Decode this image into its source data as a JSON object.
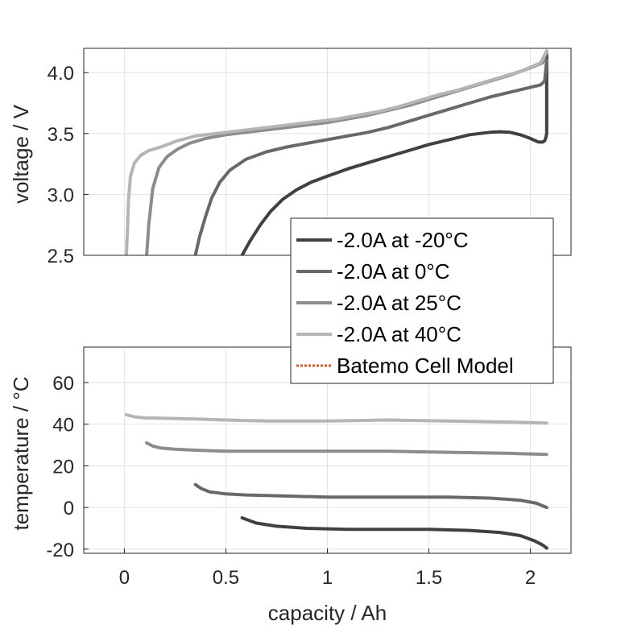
{
  "chart_data": [
    {
      "type": "line",
      "panel": "voltage",
      "title": "",
      "xlabel": "",
      "ylabel": "voltage / V",
      "xlim": [
        -0.2,
        2.2
      ],
      "ylim": [
        2.5,
        4.2
      ],
      "yticks": [
        "2.5",
        "3.0",
        "3.5",
        "4.0"
      ],
      "ytick_values": [
        2.5,
        3.0,
        3.5,
        4.0
      ],
      "xticks_values": [
        0,
        0.5,
        1,
        1.5,
        2
      ],
      "grid": true,
      "series": [
        {
          "name": "-2.0A at -20°C",
          "color": "#404040",
          "x": [
            0.58,
            0.62,
            0.67,
            0.72,
            0.78,
            0.85,
            0.92,
            1.0,
            1.1,
            1.2,
            1.3,
            1.4,
            1.5,
            1.6,
            1.7,
            1.8,
            1.85,
            1.9,
            1.95,
            2.0,
            2.04,
            2.06,
            2.07,
            2.075,
            2.08,
            2.08,
            2.08
          ],
          "y": [
            2.5,
            2.62,
            2.75,
            2.86,
            2.96,
            3.04,
            3.1,
            3.15,
            3.21,
            3.26,
            3.31,
            3.36,
            3.41,
            3.45,
            3.49,
            3.51,
            3.515,
            3.51,
            3.49,
            3.46,
            3.43,
            3.43,
            3.44,
            3.46,
            3.5,
            3.9,
            4.15
          ]
        },
        {
          "name": "-2.0A at 0°C",
          "color": "#696969",
          "x": [
            0.35,
            0.37,
            0.4,
            0.43,
            0.47,
            0.52,
            0.6,
            0.7,
            0.8,
            0.9,
            1.0,
            1.1,
            1.2,
            1.3,
            1.4,
            1.5,
            1.6,
            1.7,
            1.8,
            1.9,
            2.0,
            2.05,
            2.07,
            2.08
          ],
          "y": [
            2.5,
            2.65,
            2.82,
            2.97,
            3.1,
            3.2,
            3.29,
            3.35,
            3.39,
            3.42,
            3.45,
            3.48,
            3.51,
            3.55,
            3.6,
            3.65,
            3.7,
            3.75,
            3.8,
            3.84,
            3.88,
            3.9,
            3.93,
            4.1
          ]
        },
        {
          "name": "-2.0A at 25°C",
          "color": "#8c8c8c",
          "x": [
            0.11,
            0.12,
            0.14,
            0.17,
            0.21,
            0.26,
            0.32,
            0.4,
            0.5,
            0.6,
            0.7,
            0.8,
            0.9,
            1.0,
            1.1,
            1.2,
            1.3,
            1.4,
            1.5,
            1.6,
            1.7,
            1.8,
            1.9,
            2.0,
            2.06,
            2.08
          ],
          "y": [
            2.5,
            2.75,
            3.05,
            3.22,
            3.31,
            3.37,
            3.42,
            3.46,
            3.49,
            3.51,
            3.53,
            3.55,
            3.57,
            3.59,
            3.62,
            3.65,
            3.69,
            3.73,
            3.78,
            3.83,
            3.88,
            3.93,
            3.98,
            4.04,
            4.08,
            4.17
          ]
        },
        {
          "name": "-2.0A at 40°C",
          "color": "#b5b5b5",
          "x": [
            0.01,
            0.015,
            0.02,
            0.03,
            0.05,
            0.08,
            0.12,
            0.18,
            0.26,
            0.35,
            0.45,
            0.55,
            0.65,
            0.75,
            0.85,
            0.95,
            1.05,
            1.15,
            1.25,
            1.35,
            1.45,
            1.55,
            1.65,
            1.75,
            1.85,
            1.95,
            2.05,
            2.08
          ],
          "y": [
            2.5,
            2.7,
            2.95,
            3.15,
            3.26,
            3.32,
            3.36,
            3.39,
            3.44,
            3.48,
            3.5,
            3.52,
            3.54,
            3.56,
            3.58,
            3.6,
            3.62,
            3.65,
            3.68,
            3.72,
            3.77,
            3.82,
            3.86,
            3.91,
            3.96,
            4.01,
            4.08,
            4.18
          ]
        },
        {
          "name": "Batemo Cell Model",
          "color": "#e8541a",
          "style": "dotted",
          "x": [],
          "y": []
        }
      ],
      "legend": {
        "placement": "overlapping bottom-right",
        "entries": [
          "-2.0A at -20°C",
          "-2.0A at 0°C",
          "-2.0A at 25°C",
          "-2.0A at 40°C",
          "Batemo Cell Model"
        ]
      }
    },
    {
      "type": "line",
      "panel": "temperature",
      "title": "",
      "xlabel": "capacity / Ah",
      "ylabel": "temperature / °C",
      "xlim": [
        -0.2,
        2.2
      ],
      "ylim": [
        -22,
        77
      ],
      "yticks": [
        "-20",
        "0",
        "20",
        "40",
        "60"
      ],
      "ytick_values": [
        -20,
        0,
        20,
        40,
        60
      ],
      "xticks": [
        "0",
        "0.5",
        "1",
        "1.5",
        "2"
      ],
      "xticks_values": [
        0,
        0.5,
        1,
        1.5,
        2
      ],
      "grid": true,
      "series": [
        {
          "name": "-2.0A at -20°C",
          "color": "#404040",
          "x": [
            0.58,
            0.65,
            0.75,
            0.9,
            1.1,
            1.3,
            1.5,
            1.7,
            1.85,
            1.95,
            2.02,
            2.06,
            2.08
          ],
          "y": [
            -5,
            -7.5,
            -9,
            -10,
            -10.5,
            -10.5,
            -10.5,
            -11,
            -12,
            -13.5,
            -16,
            -18,
            -19.5
          ]
        },
        {
          "name": "-2.0A at 0°C",
          "color": "#696969",
          "x": [
            0.35,
            0.38,
            0.42,
            0.5,
            0.6,
            0.8,
            1.0,
            1.3,
            1.6,
            1.8,
            1.95,
            2.03,
            2.08
          ],
          "y": [
            11,
            9,
            7.5,
            6.5,
            6,
            5.5,
            5,
            5,
            5,
            4.5,
            3.5,
            2,
            0
          ]
        },
        {
          "name": "-2.0A at 25°C",
          "color": "#8c8c8c",
          "x": [
            0.11,
            0.14,
            0.18,
            0.25,
            0.35,
            0.5,
            0.7,
            1.0,
            1.3,
            1.6,
            1.9,
            2.08
          ],
          "y": [
            31,
            29.5,
            28.5,
            28,
            27.5,
            27,
            27,
            27,
            27,
            26.5,
            26,
            25.5
          ]
        },
        {
          "name": "-2.0A at 40°C",
          "color": "#b5b5b5",
          "x": [
            0.01,
            0.05,
            0.1,
            0.2,
            0.35,
            0.5,
            0.7,
            1.0,
            1.3,
            1.6,
            1.9,
            2.08
          ],
          "y": [
            44.5,
            43.5,
            43,
            42.8,
            42.5,
            42,
            41.5,
            41.5,
            42,
            41.5,
            41,
            40.5
          ]
        }
      ]
    }
  ]
}
